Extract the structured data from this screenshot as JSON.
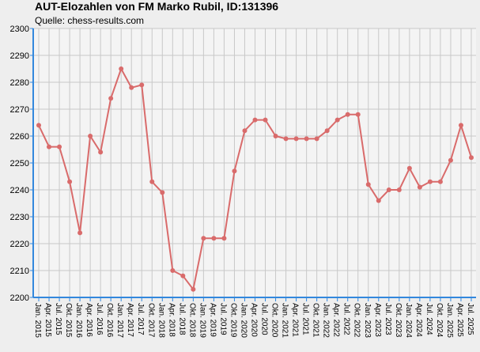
{
  "chart_data": {
    "type": "line",
    "title": "AUT-Elozahlen von FM Marko Rubil, ID:131396",
    "subtitle": "Quelle: chess-results.com",
    "categories": [
      "Jan. 2015",
      "Apr. 2015",
      "Jul. 2015",
      "Okt. 2015",
      "Jan. 2016",
      "Apr. 2016",
      "Jul. 2016",
      "Okt. 2016",
      "Jan. 2017",
      "Apr. 2017",
      "Jul. 2017",
      "Okt. 2017",
      "Jan. 2018",
      "Apr. 2018",
      "Jul. 2018",
      "Okt. 2018",
      "Jan. 2019",
      "Apr. 2019",
      "Jul. 2019",
      "Okt. 2019",
      "Jan. 2020",
      "Apr. 2020",
      "Jul. 2020",
      "Okt. 2020",
      "Jan. 2021",
      "Apr. 2021",
      "Jul. 2021",
      "Okt. 2021",
      "Jan. 2022",
      "Apr. 2022",
      "Jul. 2022",
      "Okt. 2022",
      "Jan. 2023",
      "Apr. 2023",
      "Jul. 2023",
      "Okt. 2023",
      "Jan. 2024",
      "Apr. 2024",
      "Jul. 2024",
      "Okt. 2024",
      "Jan. 2025",
      "Apr. 2025",
      "Jul. 2025"
    ],
    "values": [
      2264,
      2256,
      2256,
      2243,
      2224,
      2260,
      2254,
      2274,
      2285,
      2278,
      2279,
      2243,
      2239,
      2210,
      2208,
      2203,
      2222,
      2222,
      2222,
      2247,
      2262,
      2266,
      2266,
      2260,
      2259,
      2259,
      2259,
      2259,
      2262,
      2266,
      2268,
      2268,
      2242,
      2236,
      2240,
      2240,
      2248,
      2241,
      2243,
      2243,
      2251,
      2264,
      2252
    ],
    "color": "#d96b6b",
    "ylim": [
      2200,
      2300
    ],
    "yticks": [
      2200,
      2210,
      2220,
      2230,
      2240,
      2250,
      2260,
      2270,
      2280,
      2290,
      2300
    ],
    "grid": true
  }
}
